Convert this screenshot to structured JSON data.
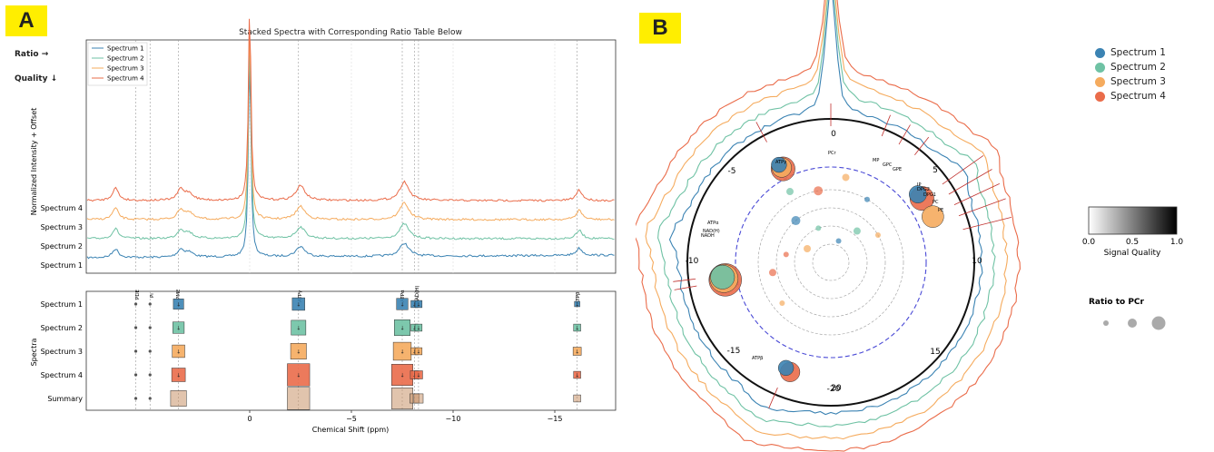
{
  "panels": {
    "a_label": "A",
    "b_label": "B"
  },
  "panel_a": {
    "title": "Stacked Spectra with Corresponding Ratio Table Below",
    "side_labels": {
      "ratio": "Ratio →",
      "quality": "Quality ↓"
    },
    "top_ylabel": "Normalized Intensity + Offset",
    "bottom_ylabel": "Spectra",
    "xlabel": "Chemical Shift (ppm)",
    "x_ticks": [
      {
        "value": 0,
        "label": "0"
      },
      {
        "value": -5,
        "label": "−5"
      },
      {
        "value": -10,
        "label": "−10"
      },
      {
        "value": -15,
        "label": "−15"
      }
    ],
    "row_labels": [
      "Spectrum 1",
      "Spectrum 2",
      "Spectrum 3",
      "Spectrum 4",
      "Summary"
    ],
    "legend": [
      "Spectrum 1",
      "Spectrum 2",
      "Spectrum 3",
      "Spectrum 4"
    ],
    "metabolite_labels": [
      "PDE",
      "Pi",
      "PME",
      "ATPγ",
      "ATPα",
      "NAD(H)",
      "ATPβ"
    ]
  },
  "panel_b": {
    "polar_labels": [
      {
        "value": "0",
        "label": "0"
      },
      {
        "value": "5",
        "label": "5"
      },
      {
        "value": "10",
        "label": "10"
      },
      {
        "value": "15",
        "label": "15"
      },
      {
        "value": "20",
        "label": "20"
      },
      {
        "value": "-5",
        "label": "-5"
      },
      {
        "value": "-10",
        "label": "-10"
      },
      {
        "value": "-15",
        "label": "-15"
      },
      {
        "value": "-20",
        "label": "-20"
      }
    ],
    "metabolite_labels": [
      "PCr",
      "ATPγ",
      "MP",
      "GPC",
      "GPE",
      "IP",
      "DPG2",
      "DPG1",
      "PC",
      "PE",
      "ATPα",
      "NAD(H)",
      "NADH",
      "ATPβ"
    ],
    "legend": [
      "Spectrum 1",
      "Spectrum 2",
      "Spectrum 3",
      "Spectrum 4"
    ],
    "colorbar": {
      "ticks": [
        "0.0",
        "0.5",
        "1.0"
      ],
      "label": "Signal Quality"
    },
    "size_legend_title": "Ratio to PCr"
  },
  "colors": {
    "s1": "#3b83b3",
    "s2": "#6fc2a4",
    "s3": "#f5ab5e",
    "s4": "#ea6c4a",
    "circle": "#111111",
    "dashed": "#4a4ad6"
  },
  "chart_data": [
    {
      "type": "line",
      "title": "Stacked Spectra with Corresponding Ratio Table Below",
      "xlabel": "Chemical Shift (ppm)",
      "ylabel": "Normalized Intensity + Offset",
      "xlim": [
        8,
        -18
      ],
      "series": [
        {
          "name": "Spectrum 1",
          "offset": 0
        },
        {
          "name": "Spectrum 2",
          "offset": 1
        },
        {
          "name": "Spectrum 3",
          "offset": 2
        },
        {
          "name": "Spectrum 4",
          "offset": 3
        }
      ],
      "peaks_ppm": [
        6.6,
        3.4,
        3.0,
        0,
        -2.5,
        -7.6,
        -16.2
      ],
      "peak_heights": [
        0.9,
        0.6,
        0.4,
        10.5,
        1.0,
        1.3,
        0.7
      ],
      "reference_lines_ppm": [
        5.6,
        4.9,
        3.5,
        -2.4,
        -7.5,
        -8.1,
        -8.3,
        -16.1
      ]
    },
    {
      "type": "scatter",
      "title": "",
      "xlabel": "Chemical Shift (ppm)",
      "ylabel": "Spectra",
      "categories": [
        "Spectrum 1",
        "Spectrum 2",
        "Spectrum 3",
        "Spectrum 4",
        "Summary"
      ],
      "columns_ppm": [
        5.6,
        4.9,
        3.5,
        -2.4,
        -7.5,
        -8.1,
        -8.3,
        -16.1
      ],
      "ratio_matrix": [
        [
          0.05,
          0.05,
          0.35,
          0.45,
          0.4,
          0.2,
          0.2,
          0.12
        ],
        [
          0.05,
          0.05,
          0.4,
          0.55,
          0.6,
          0.2,
          0.2,
          0.2
        ],
        [
          0.05,
          0.05,
          0.45,
          0.6,
          0.7,
          0.2,
          0.2,
          0.25
        ],
        [
          0.05,
          0.05,
          0.5,
          0.9,
          0.85,
          0.25,
          0.25,
          0.2
        ],
        [
          0.05,
          0.05,
          0.6,
          0.9,
          0.85,
          0.3,
          0.3,
          0.2
        ]
      ]
    },
    {
      "type": "scatter",
      "title": "",
      "polar_ring_ticks": [
        "0",
        "5",
        "10",
        "15",
        "20",
        "-5",
        "-10",
        "-15",
        "-20"
      ],
      "bubbles": [
        {
          "series": "Spectrum 4",
          "angle_deg": -28,
          "radius": 0.77,
          "ratio": 0.55,
          "quality": 0.9
        },
        {
          "series": "Spectrum 3",
          "angle_deg": -28,
          "radius": 0.77,
          "ratio": 0.45,
          "quality": 0.9
        },
        {
          "series": "Spectrum 1",
          "angle_deg": -28,
          "radius": 0.77,
          "ratio": 0.35,
          "quality": 0.9
        },
        {
          "series": "Spectrum 4",
          "angle_deg": 52,
          "radius": 0.77,
          "ratio": 0.55,
          "quality": 0.9
        },
        {
          "series": "Spectrum 1",
          "angle_deg": 52,
          "radius": 0.77,
          "ratio": 0.4,
          "quality": 0.9
        },
        {
          "series": "Spectrum 3",
          "angle_deg": 64,
          "radius": 0.77,
          "ratio": 0.5,
          "quality": 0.7
        },
        {
          "series": "Spectrum 4",
          "angle_deg": -97,
          "radius": 0.77,
          "ratio": 0.75,
          "quality": 0.9
        },
        {
          "series": "Spectrum 3",
          "angle_deg": -97,
          "radius": 0.77,
          "ratio": 0.65,
          "quality": 0.9
        },
        {
          "series": "Spectrum 2",
          "angle_deg": -97,
          "radius": 0.77,
          "ratio": 0.55,
          "quality": 0.9
        },
        {
          "series": "Spectrum 4",
          "angle_deg": -157,
          "radius": 0.8,
          "ratio": 0.45,
          "quality": 0.9
        },
        {
          "series": "Spectrum 1",
          "angle_deg": -157,
          "radius": 0.8,
          "ratio": 0.35,
          "quality": 0.9
        }
      ]
    }
  ]
}
